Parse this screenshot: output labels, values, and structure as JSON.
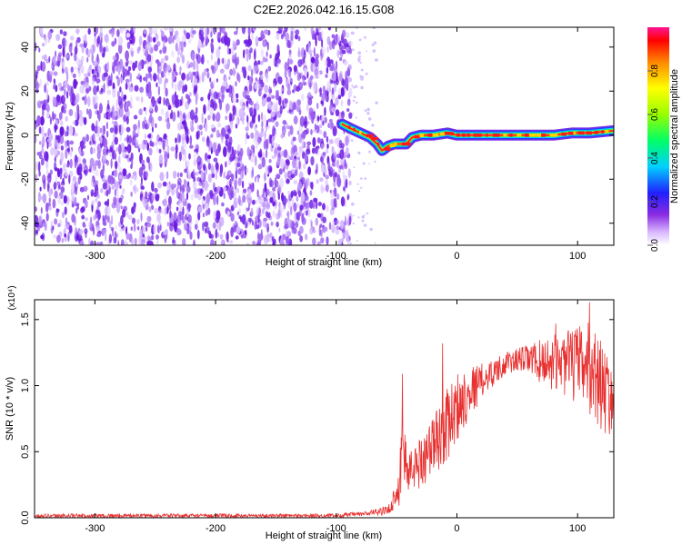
{
  "title": "C2E2.2026.042.16.15.G08",
  "chart_data": [
    {
      "type": "heatmap",
      "xlabel": "Height of straight line (km)",
      "ylabel": "Frequency (Hz)",
      "xlim": [
        -350,
        130
      ],
      "ylim": [
        -50,
        49
      ],
      "x_ticks": [
        -300,
        -200,
        -100,
        0,
        100
      ],
      "y_ticks": [
        -40,
        -20,
        0,
        20,
        40
      ],
      "noise_region_x": [
        -350,
        -88
      ],
      "signal_track": [
        {
          "x": -95,
          "y": 5
        },
        {
          "x": -88,
          "y": 3
        },
        {
          "x": -80,
          "y": 1
        },
        {
          "x": -72,
          "y": -1
        },
        {
          "x": -66,
          "y": -4
        },
        {
          "x": -62,
          "y": -7
        },
        {
          "x": -57,
          "y": -5
        },
        {
          "x": -52,
          "y": -4
        },
        {
          "x": -47,
          "y": -4
        },
        {
          "x": -42,
          "y": -4
        },
        {
          "x": -37,
          "y": -1
        },
        {
          "x": -30,
          "y": 0
        },
        {
          "x": -20,
          "y": 0
        },
        {
          "x": -8,
          "y": 1
        },
        {
          "x": 0,
          "y": 0
        },
        {
          "x": 20,
          "y": 0
        },
        {
          "x": 50,
          "y": 0
        },
        {
          "x": 80,
          "y": 0
        },
        {
          "x": 95,
          "y": 1
        },
        {
          "x": 110,
          "y": 1
        },
        {
          "x": 130,
          "y": 2
        }
      ],
      "colorbar": {
        "label": "Normalized spectral amplitude",
        "range": [
          0,
          1
        ],
        "ticks": [
          "0.0",
          "0.2",
          "0.4",
          "0.6",
          "0.8"
        ]
      }
    },
    {
      "type": "line",
      "xlabel": "Height of straight line (km)",
      "ylabel": "SNR (10 * v/v)",
      "yscale_note": "(x10⁴)",
      "xlim": [
        -350,
        130
      ],
      "ylim": [
        0,
        1.65
      ],
      "x_ticks": [
        -300,
        -200,
        -100,
        0,
        100
      ],
      "y_ticks": [
        "0.0",
        "0.5",
        "1.0",
        "1.5"
      ],
      "series": [
        {
          "color": "#e83030",
          "envelope": [
            {
              "x": -350,
              "low": 0.0,
              "high": 0.03
            },
            {
              "x": -100,
              "low": 0.0,
              "high": 0.03
            },
            {
              "x": -75,
              "low": 0.01,
              "high": 0.05
            },
            {
              "x": -57,
              "low": 0.02,
              "high": 0.09
            },
            {
              "x": -52,
              "low": 0.06,
              "high": 0.23
            },
            {
              "x": -48,
              "low": 0.08,
              "high": 0.4
            },
            {
              "x": -45,
              "low": 0.12,
              "high": 0.9
            },
            {
              "x": -40,
              "low": 0.18,
              "high": 0.5
            },
            {
              "x": -30,
              "low": 0.22,
              "high": 0.62
            },
            {
              "x": -20,
              "low": 0.3,
              "high": 0.78
            },
            {
              "x": -10,
              "low": 0.4,
              "high": 0.95
            },
            {
              "x": 0,
              "low": 0.55,
              "high": 1.1
            },
            {
              "x": 10,
              "low": 0.75,
              "high": 1.15
            },
            {
              "x": 25,
              "low": 0.95,
              "high": 1.18
            },
            {
              "x": 40,
              "low": 1.08,
              "high": 1.25
            },
            {
              "x": 55,
              "low": 1.1,
              "high": 1.3
            },
            {
              "x": 70,
              "low": 1.0,
              "high": 1.35
            },
            {
              "x": 85,
              "low": 0.95,
              "high": 1.4
            },
            {
              "x": 100,
              "low": 0.85,
              "high": 1.45
            },
            {
              "x": 110,
              "low": 0.75,
              "high": 1.5
            },
            {
              "x": 120,
              "low": 0.65,
              "high": 1.35
            },
            {
              "x": 130,
              "low": 0.6,
              "high": 1.1
            }
          ],
          "spikes": [
            {
              "x": -45,
              "y": 1.09
            },
            {
              "x": -12,
              "y": 1.32
            },
            {
              "x": 82,
              "y": 1.47
            },
            {
              "x": 110,
              "y": 1.63
            }
          ]
        }
      ]
    }
  ]
}
